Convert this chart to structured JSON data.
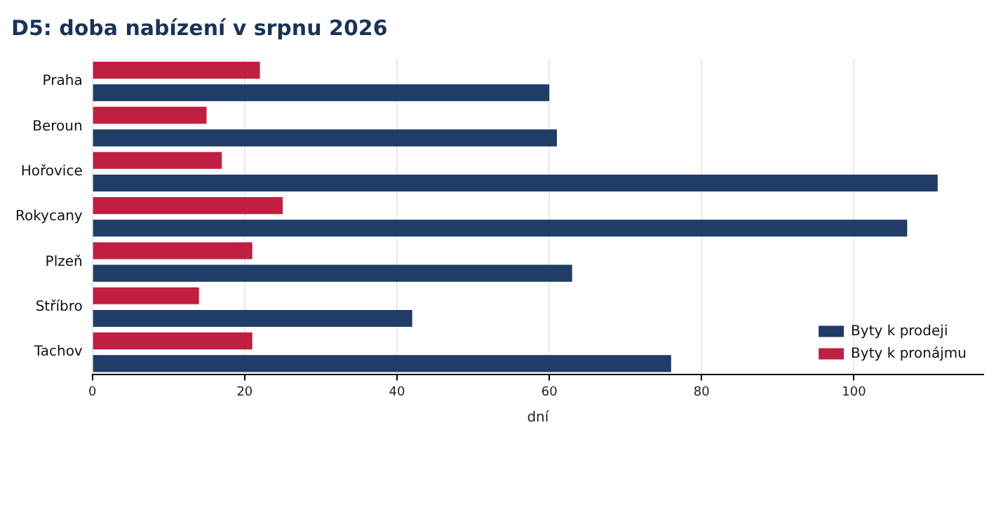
{
  "chart_data": {
    "type": "bar",
    "orientation": "horizontal",
    "title": "D5: doba nabízení v srpnu 2026",
    "xlabel": "dní",
    "categories": [
      "Praha",
      "Beroun",
      "Hořovice",
      "Rokycany",
      "Plzeň",
      "Stříbro",
      "Tachov"
    ],
    "series": [
      {
        "name": "Byty k prodeji",
        "color": "#1f3d66",
        "values": [
          60,
          61,
          111,
          107,
          63,
          42,
          76
        ]
      },
      {
        "name": "Byty k pronájmu",
        "color": "#c01f42",
        "values": [
          22,
          15,
          17,
          25,
          21,
          14,
          21
        ]
      }
    ],
    "xlim": [
      0,
      117
    ],
    "xticks": [
      0,
      20,
      40,
      60,
      80,
      100
    ],
    "grid": "x",
    "legend": "bottom right"
  }
}
